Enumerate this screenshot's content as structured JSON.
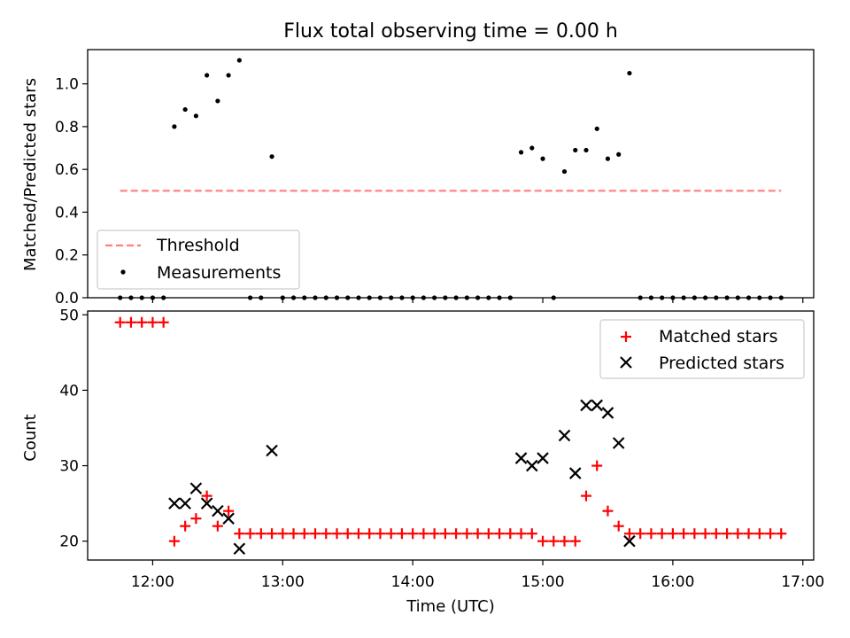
{
  "chart_data": [
    {
      "type": "scatter",
      "title": "Flux total observing time = 0.00 h",
      "xlabel": "",
      "ylabel": "Matched/Predicted stars",
      "ylim": [
        0.0,
        1.16
      ],
      "yticks": [
        0.0,
        0.2,
        0.4,
        0.6,
        0.8,
        1.0
      ],
      "ytick_labels": [
        "0.0",
        "0.2",
        "0.4",
        "0.6",
        "0.8",
        "1.0"
      ],
      "legend_position": "lower-left",
      "legend": [
        "Threshold",
        "Measurements"
      ],
      "threshold": {
        "name": "Threshold",
        "y": 0.5,
        "x_range": [
          "11:45",
          "16:50"
        ],
        "color": "#ff7f7f",
        "style": "dashed"
      },
      "series": [
        {
          "name": "Measurements",
          "color": "#000000",
          "points": [
            [
              "11:45",
              0.0
            ],
            [
              "11:50",
              0.0
            ],
            [
              "11:55",
              0.0
            ],
            [
              "12:00",
              0.0
            ],
            [
              "12:05",
              0.0
            ],
            [
              "12:10",
              0.8
            ],
            [
              "12:15",
              0.88
            ],
            [
              "12:20",
              0.85
            ],
            [
              "12:25",
              1.04
            ],
            [
              "12:30",
              0.92
            ],
            [
              "12:35",
              1.04
            ],
            [
              "12:40",
              1.11
            ],
            [
              "12:45",
              0.0
            ],
            [
              "12:50",
              0.0
            ],
            [
              "12:55",
              0.66
            ],
            [
              "13:00",
              0.0
            ],
            [
              "13:05",
              0.0
            ],
            [
              "13:10",
              0.0
            ],
            [
              "13:15",
              0.0
            ],
            [
              "13:20",
              0.0
            ],
            [
              "13:25",
              0.0
            ],
            [
              "13:30",
              0.0
            ],
            [
              "13:35",
              0.0
            ],
            [
              "13:40",
              0.0
            ],
            [
              "13:45",
              0.0
            ],
            [
              "13:50",
              0.0
            ],
            [
              "13:55",
              0.0
            ],
            [
              "14:00",
              0.0
            ],
            [
              "14:05",
              0.0
            ],
            [
              "14:10",
              0.0
            ],
            [
              "14:15",
              0.0
            ],
            [
              "14:20",
              0.0
            ],
            [
              "14:25",
              0.0
            ],
            [
              "14:30",
              0.0
            ],
            [
              "14:35",
              0.0
            ],
            [
              "14:40",
              0.0
            ],
            [
              "14:45",
              0.0
            ],
            [
              "14:50",
              0.68
            ],
            [
              "14:55",
              0.7
            ],
            [
              "15:00",
              0.65
            ],
            [
              "15:05",
              0.0
            ],
            [
              "15:10",
              0.59
            ],
            [
              "15:15",
              0.69
            ],
            [
              "15:20",
              0.69
            ],
            [
              "15:25",
              0.79
            ],
            [
              "15:30",
              0.65
            ],
            [
              "15:35",
              0.67
            ],
            [
              "15:40",
              1.05
            ],
            [
              "15:45",
              0.0
            ],
            [
              "15:50",
              0.0
            ],
            [
              "15:55",
              0.0
            ],
            [
              "16:00",
              0.0
            ],
            [
              "16:05",
              0.0
            ],
            [
              "16:10",
              0.0
            ],
            [
              "16:15",
              0.0
            ],
            [
              "16:20",
              0.0
            ],
            [
              "16:25",
              0.0
            ],
            [
              "16:30",
              0.0
            ],
            [
              "16:35",
              0.0
            ],
            [
              "16:40",
              0.0
            ],
            [
              "16:45",
              0.0
            ],
            [
              "16:50",
              0.0
            ]
          ]
        }
      ]
    },
    {
      "type": "scatter",
      "title": "",
      "xlabel": "Time (UTC)",
      "ylabel": "Count",
      "xlim": [
        "11:30",
        "17:05"
      ],
      "xticks": [
        "12:00",
        "13:00",
        "14:00",
        "15:00",
        "16:00",
        "17:00"
      ],
      "ylim": [
        17.5,
        50.5
      ],
      "yticks": [
        20,
        30,
        40,
        50
      ],
      "legend_position": "upper-right",
      "legend": [
        "Matched stars",
        "Predicted stars"
      ],
      "series": [
        {
          "name": "Matched stars",
          "marker": "plus",
          "color": "#ff0000",
          "points": [
            [
              "11:45",
              49
            ],
            [
              "11:50",
              49
            ],
            [
              "11:55",
              49
            ],
            [
              "12:00",
              49
            ],
            [
              "12:05",
              49
            ],
            [
              "12:10",
              20
            ],
            [
              "12:15",
              22
            ],
            [
              "12:20",
              23
            ],
            [
              "12:25",
              26
            ],
            [
              "12:30",
              22
            ],
            [
              "12:35",
              24
            ],
            [
              "12:40",
              21
            ],
            [
              "12:45",
              21
            ],
            [
              "12:50",
              21
            ],
            [
              "12:55",
              21
            ],
            [
              "13:00",
              21
            ],
            [
              "13:05",
              21
            ],
            [
              "13:10",
              21
            ],
            [
              "13:15",
              21
            ],
            [
              "13:20",
              21
            ],
            [
              "13:25",
              21
            ],
            [
              "13:30",
              21
            ],
            [
              "13:35",
              21
            ],
            [
              "13:40",
              21
            ],
            [
              "13:45",
              21
            ],
            [
              "13:50",
              21
            ],
            [
              "13:55",
              21
            ],
            [
              "14:00",
              21
            ],
            [
              "14:05",
              21
            ],
            [
              "14:10",
              21
            ],
            [
              "14:15",
              21
            ],
            [
              "14:20",
              21
            ],
            [
              "14:25",
              21
            ],
            [
              "14:30",
              21
            ],
            [
              "14:35",
              21
            ],
            [
              "14:40",
              21
            ],
            [
              "14:45",
              21
            ],
            [
              "14:50",
              21
            ],
            [
              "14:55",
              21
            ],
            [
              "15:00",
              20
            ],
            [
              "15:05",
              20
            ],
            [
              "15:10",
              20
            ],
            [
              "15:15",
              20
            ],
            [
              "15:20",
              26
            ],
            [
              "15:25",
              30
            ],
            [
              "15:30",
              24
            ],
            [
              "15:35",
              22
            ],
            [
              "15:40",
              21
            ],
            [
              "15:45",
              21
            ],
            [
              "15:50",
              21
            ],
            [
              "15:55",
              21
            ],
            [
              "16:00",
              21
            ],
            [
              "16:05",
              21
            ],
            [
              "16:10",
              21
            ],
            [
              "16:15",
              21
            ],
            [
              "16:20",
              21
            ],
            [
              "16:25",
              21
            ],
            [
              "16:30",
              21
            ],
            [
              "16:35",
              21
            ],
            [
              "16:40",
              21
            ],
            [
              "16:45",
              21
            ],
            [
              "16:50",
              21
            ]
          ]
        },
        {
          "name": "Predicted stars",
          "marker": "x",
          "color": "#000000",
          "points": [
            [
              "12:10",
              25
            ],
            [
              "12:15",
              25
            ],
            [
              "12:20",
              27
            ],
            [
              "12:25",
              25
            ],
            [
              "12:30",
              24
            ],
            [
              "12:35",
              23
            ],
            [
              "12:40",
              19
            ],
            [
              "12:55",
              32
            ],
            [
              "14:50",
              31
            ],
            [
              "14:55",
              30
            ],
            [
              "15:00",
              31
            ],
            [
              "15:10",
              34
            ],
            [
              "15:15",
              29
            ],
            [
              "15:20",
              38
            ],
            [
              "15:25",
              38
            ],
            [
              "15:30",
              37
            ],
            [
              "15:35",
              33
            ],
            [
              "15:40",
              20
            ]
          ]
        }
      ]
    }
  ]
}
